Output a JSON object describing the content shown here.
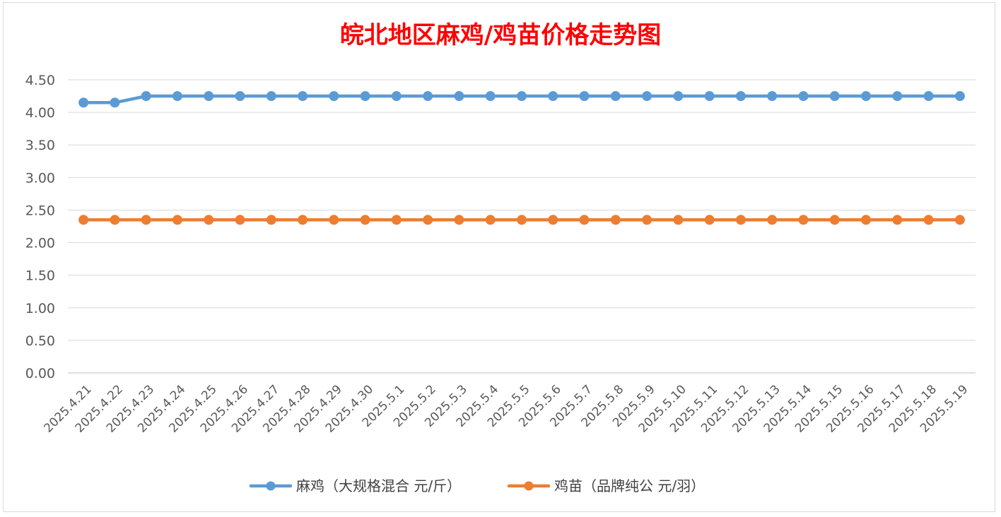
{
  "chart_data": {
    "type": "line",
    "title": "皖北地区麻鸡/鸡苗价格走势图",
    "title_color": "#ff0000",
    "xlabel": "",
    "ylabel": "",
    "ylim": [
      0,
      4.5
    ],
    "y_ticks": [
      "0.00",
      "0.50",
      "1.00",
      "1.50",
      "2.00",
      "2.50",
      "3.00",
      "3.50",
      "4.00",
      "4.50"
    ],
    "grid": true,
    "legend_position": "bottom",
    "categories": [
      "2025.4.21",
      "2025.4.22",
      "2025.4.23",
      "2025.4.24",
      "2025.4.25",
      "2025.4.26",
      "2025.4.27",
      "2025.4.28",
      "2025.4.29",
      "2025.4.30",
      "2025.5.1",
      "2025.5.2",
      "2025.5.3",
      "2025.5.4",
      "2025.5.5",
      "2025.5.6",
      "2025.5.7",
      "2025.5.8",
      "2025.5.9",
      "2025.5.10",
      "2025.5.11",
      "2025.5.12",
      "2025.5.13",
      "2025.5.14",
      "2025.5.15",
      "2025.5.16",
      "2025.5.17",
      "2025.5.18",
      "2025.5.19"
    ],
    "series": [
      {
        "name": "麻鸡（大规格混合 元/斤）",
        "color": "#5b9bd5",
        "values": [
          4.15,
          4.15,
          4.25,
          4.25,
          4.25,
          4.25,
          4.25,
          4.25,
          4.25,
          4.25,
          4.25,
          4.25,
          4.25,
          4.25,
          4.25,
          4.25,
          4.25,
          4.25,
          4.25,
          4.25,
          4.25,
          4.25,
          4.25,
          4.25,
          4.25,
          4.25,
          4.25,
          4.25,
          4.25
        ]
      },
      {
        "name": "鸡苗（品牌纯公 元/羽）",
        "color": "#ed7d31",
        "values": [
          2.35,
          2.35,
          2.35,
          2.35,
          2.35,
          2.35,
          2.35,
          2.35,
          2.35,
          2.35,
          2.35,
          2.35,
          2.35,
          2.35,
          2.35,
          2.35,
          2.35,
          2.35,
          2.35,
          2.35,
          2.35,
          2.35,
          2.35,
          2.35,
          2.35,
          2.35,
          2.35,
          2.35,
          2.35
        ]
      }
    ]
  }
}
